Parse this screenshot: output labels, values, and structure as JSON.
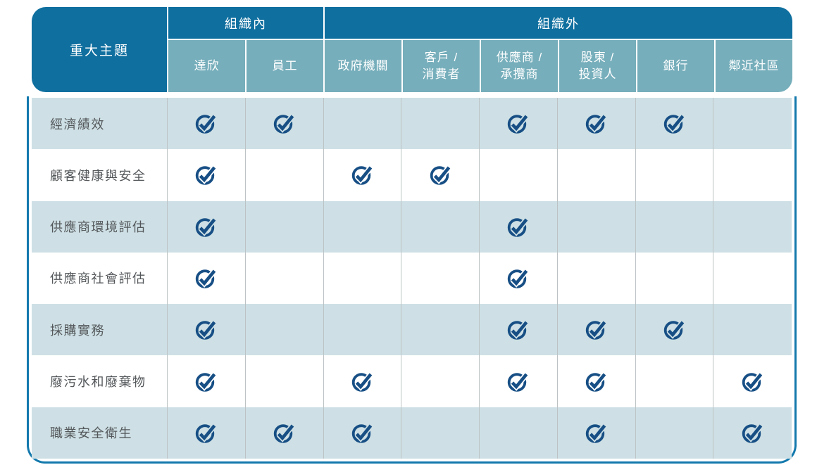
{
  "table": {
    "corner_label": "重大主題",
    "groups": [
      {
        "label": "組織內",
        "span": 2
      },
      {
        "label": "組織外",
        "span": 6
      }
    ],
    "columns": [
      "達欣",
      "員工",
      "政府機關",
      "客戶 /\n消費者",
      "供應商 /\n承攬商",
      "股東 /\n投資人",
      "銀行",
      "鄰近社區"
    ],
    "rows": [
      {
        "topic": "經濟績效",
        "checks": [
          1,
          1,
          0,
          0,
          1,
          1,
          1,
          0
        ]
      },
      {
        "topic": "顧客健康與安全",
        "checks": [
          1,
          0,
          1,
          1,
          0,
          0,
          0,
          0
        ]
      },
      {
        "topic": "供應商環境評估",
        "checks": [
          1,
          0,
          0,
          0,
          1,
          0,
          0,
          0
        ]
      },
      {
        "topic": "供應商社會評估",
        "checks": [
          1,
          0,
          0,
          0,
          1,
          0,
          0,
          0
        ]
      },
      {
        "topic": "採購實務",
        "checks": [
          1,
          0,
          0,
          0,
          1,
          1,
          1,
          0
        ]
      },
      {
        "topic": "廢污水和廢棄物",
        "checks": [
          1,
          0,
          1,
          0,
          1,
          1,
          0,
          1
        ]
      },
      {
        "topic": "職業安全衛生",
        "checks": [
          1,
          1,
          1,
          0,
          0,
          1,
          0,
          1
        ]
      }
    ],
    "check_icon": "circled-checkmark-icon",
    "colors": {
      "header_dark_blue": "#0F6F9F",
      "header_teal": "#76AEBB",
      "row_light_blue": "#CEE0E5",
      "row_white": "#FFFFFF",
      "check_navy": "#174F85",
      "outer_border_blue": "#1379AD",
      "divider_gray": "#BDC3C5",
      "topic_text_gray": "#54585B"
    }
  }
}
